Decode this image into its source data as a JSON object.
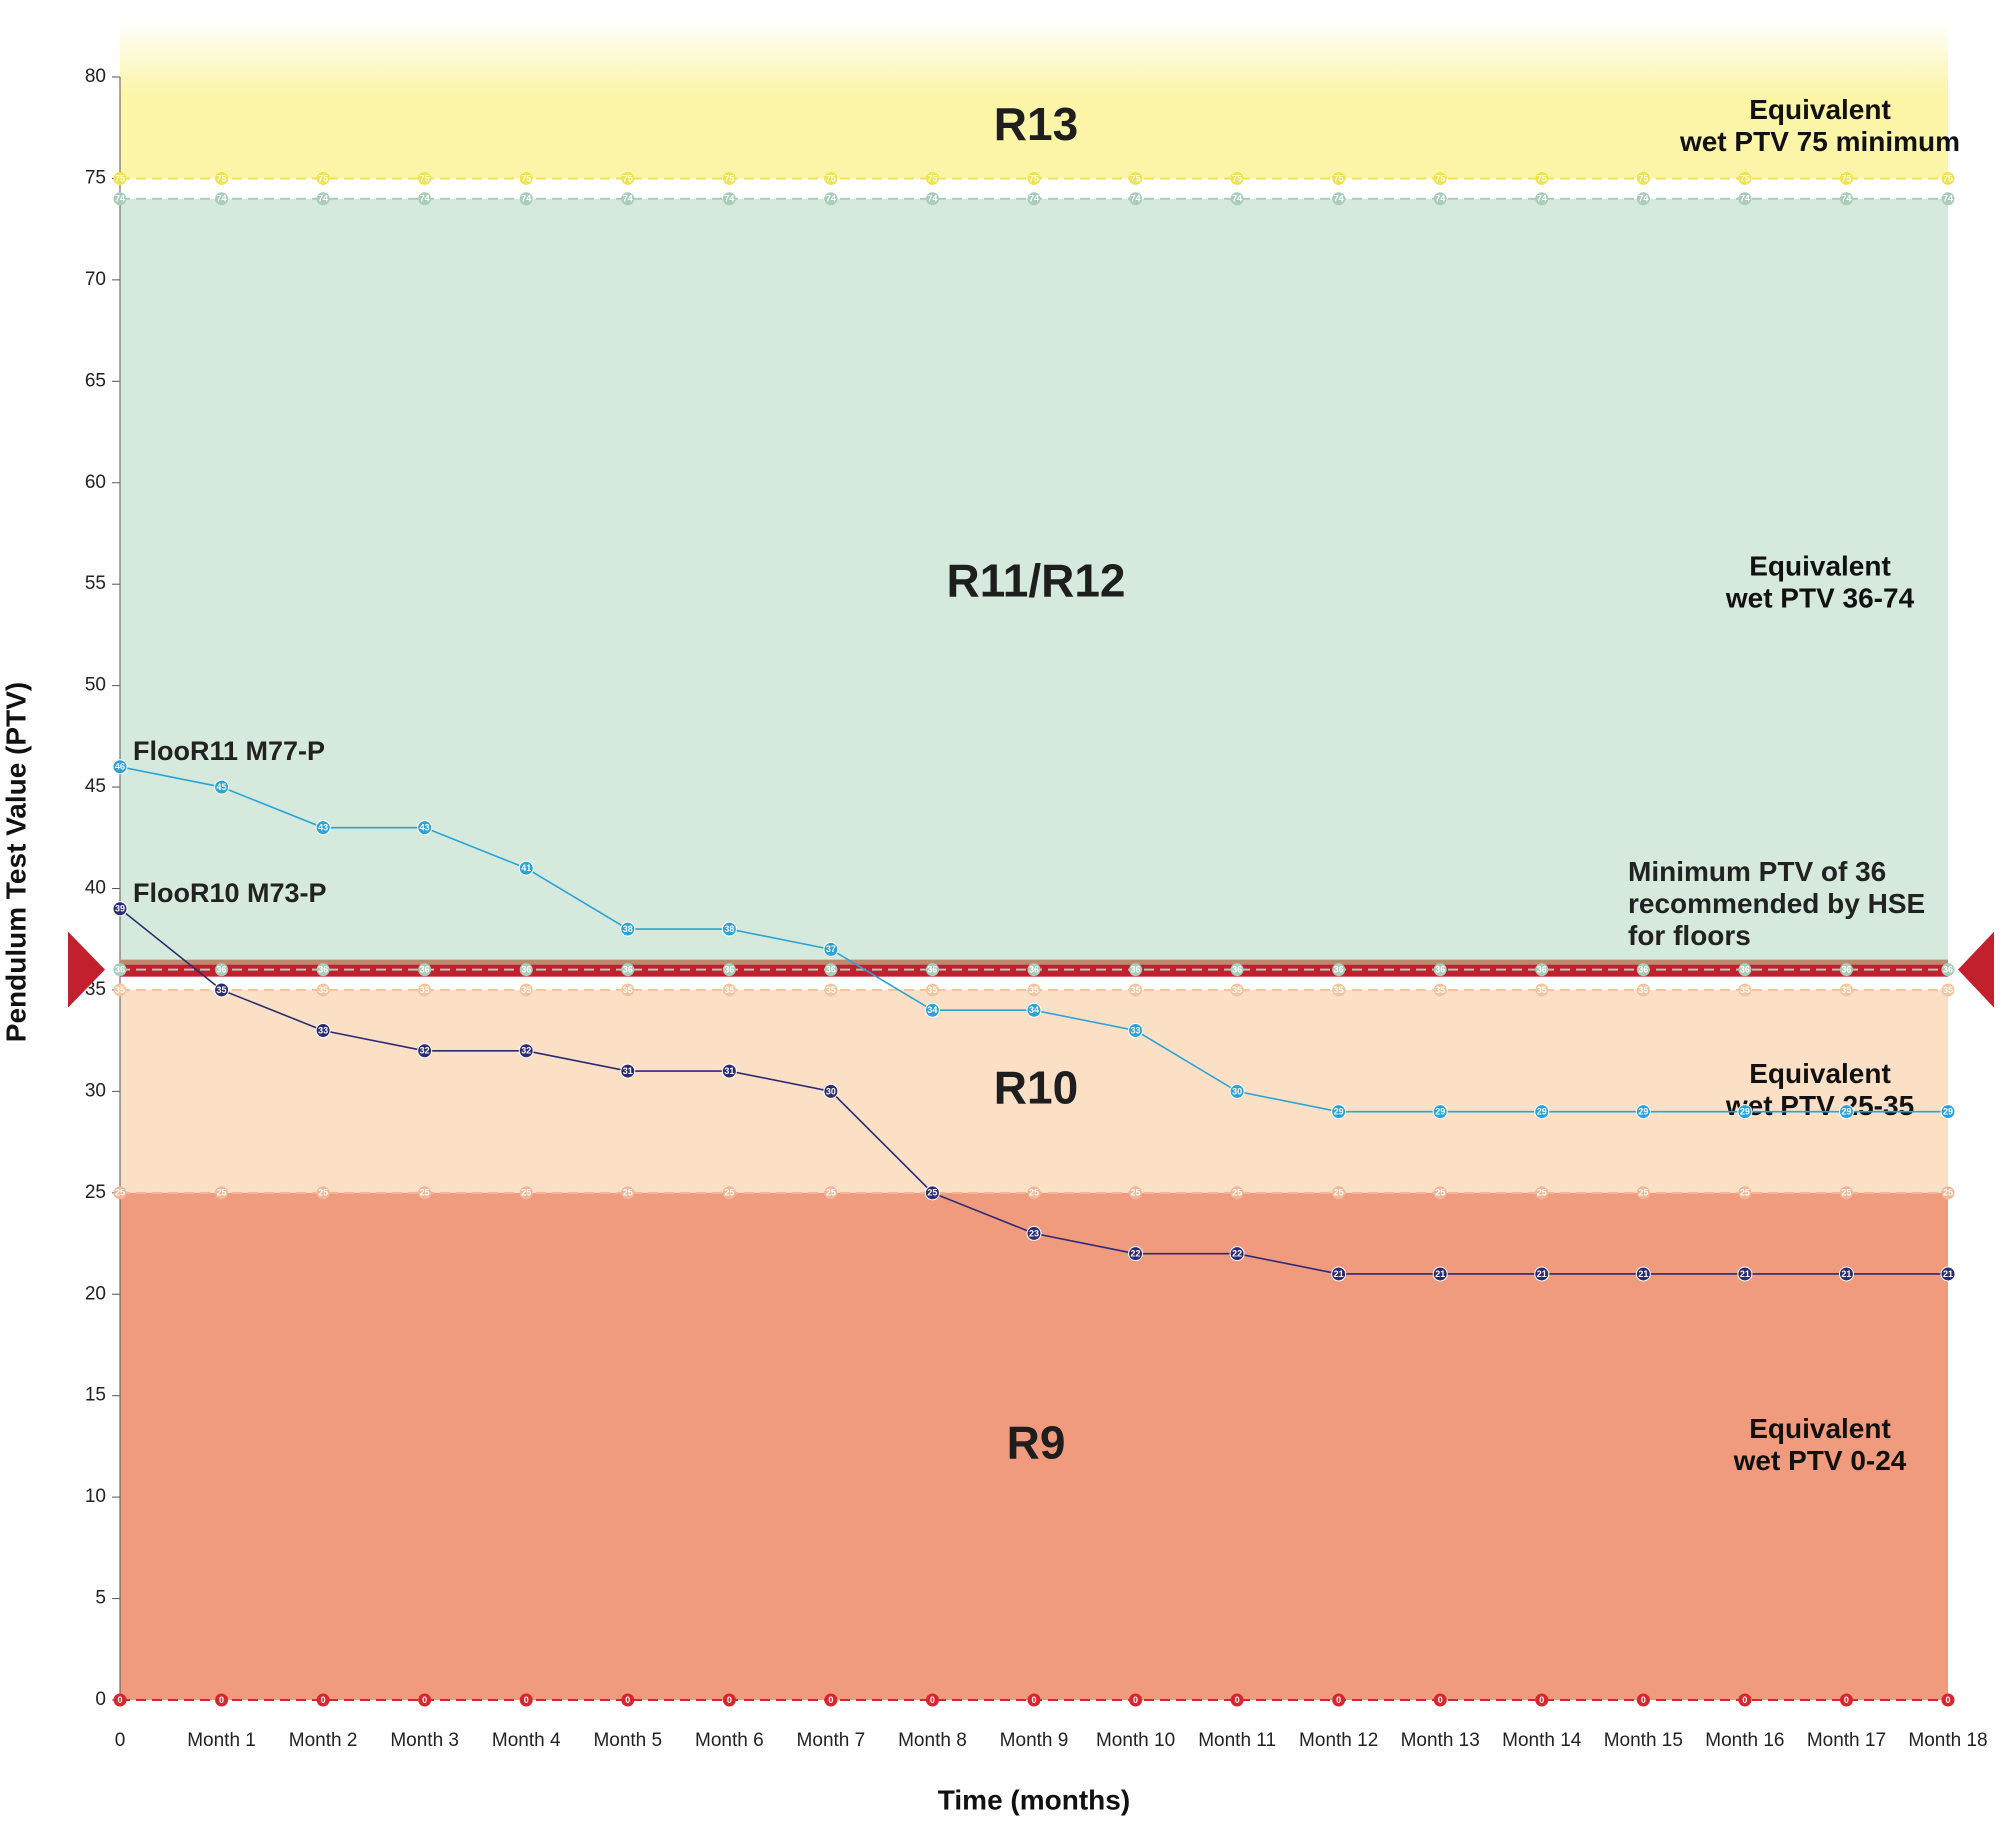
{
  "chart_data": {
    "type": "line",
    "y_label": "Pendulum Test Value (PTV)",
    "x_label": "Time (months)",
    "categories": [
      "0",
      "Month 1",
      "Month 2",
      "Month 3",
      "Month 4",
      "Month 5",
      "Month 6",
      "Month 7",
      "Month 8",
      "Month 9",
      "Month 10",
      "Month 11",
      "Month 12",
      "Month 13",
      "Month 14",
      "Month 15",
      "Month 16",
      "Month 17",
      "Month 18"
    ],
    "series": [
      {
        "name": "FlooR11 M77-P",
        "color": "#2ba3d8",
        "values": [
          46,
          45,
          43,
          43,
          41,
          38,
          38,
          37,
          34,
          34,
          33,
          30,
          29,
          29,
          29,
          29,
          29,
          29,
          29
        ]
      },
      {
        "name": "FlooR10 M73-P",
        "color": "#2b2a72",
        "values": [
          39,
          35,
          33,
          32,
          32,
          31,
          31,
          30,
          25,
          23,
          22,
          22,
          21,
          21,
          21,
          21,
          21,
          21,
          21
        ]
      }
    ],
    "ylim": [
      0,
      80
    ],
    "yticks": [
      0,
      5,
      10,
      15,
      20,
      25,
      30,
      35,
      40,
      45,
      50,
      55,
      60,
      65,
      70,
      75,
      80
    ],
    "bands": [
      {
        "label": "R9",
        "range": [
          0,
          25
        ],
        "color": "#f09a7e",
        "note": [
          "Equivalent",
          "wet PTV 0-24"
        ]
      },
      {
        "label": "R10",
        "range": [
          25,
          35
        ],
        "color": "#fbe0c6",
        "note": [
          "Equivalent",
          "wet PTV 25-35"
        ]
      },
      {
        "label": "R11/R12",
        "range": [
          36,
          74
        ],
        "color": "#d5eadc",
        "note": [
          "Equivalent",
          "wet PTV 36-74"
        ]
      },
      {
        "label": "R13",
        "range": [
          75,
          80
        ],
        "color": "#fcf4a6",
        "note": [
          "Equivalent",
          "wet PTV 75 minimum"
        ]
      }
    ],
    "reference_lines": [
      {
        "value": 75,
        "color": "#f2e250"
      },
      {
        "value": 74,
        "color": "#a9cdb8"
      },
      {
        "value": 36,
        "color": "#a9cdb8"
      },
      {
        "value": 35,
        "color": "#f5c39c"
      },
      {
        "value": 25,
        "color": "#f2b596"
      },
      {
        "value": 0,
        "color": "#d9262e"
      }
    ],
    "threshold": {
      "value": 36,
      "color": "#c3202e",
      "text": [
        "Minimum PTV of 36",
        "recommended by HSE",
        "for floors"
      ]
    }
  }
}
